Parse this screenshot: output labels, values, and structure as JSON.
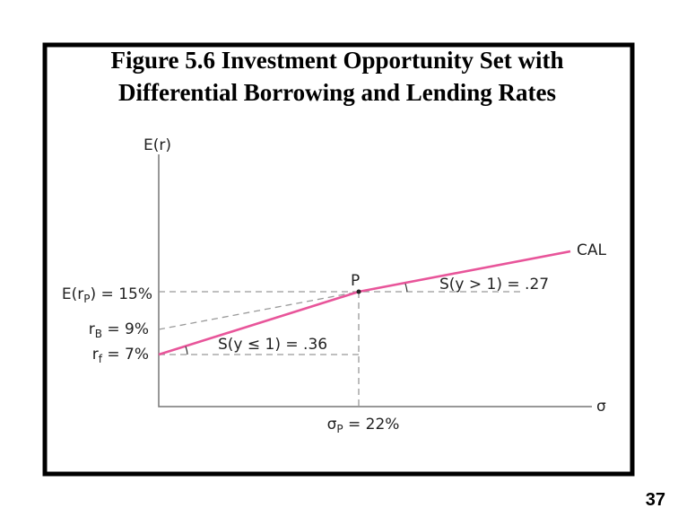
{
  "slide": {
    "title": [
      "Figure 5.6 Investment Opportunity Set with",
      "Differential Borrowing and Lending Rates"
    ],
    "page_number": "37"
  },
  "figure": {
    "y_axis_label": "E(r)",
    "x_axis_label": "σ",
    "point_label": "P",
    "line_label": "CAL",
    "expected_return_label": [
      "E(r",
      "P",
      ") = 15%"
    ],
    "borrowing_rate_label": [
      "r",
      "B",
      " = 9%"
    ],
    "risk_free_label": [
      "r",
      "f",
      " = 7%"
    ],
    "sigma_label": [
      "σ",
      "P",
      " = 22%"
    ],
    "lending_slope_label": "S(y ≤ 1) = .36",
    "borrowing_slope_label": "S(y > 1) = .27"
  }
}
